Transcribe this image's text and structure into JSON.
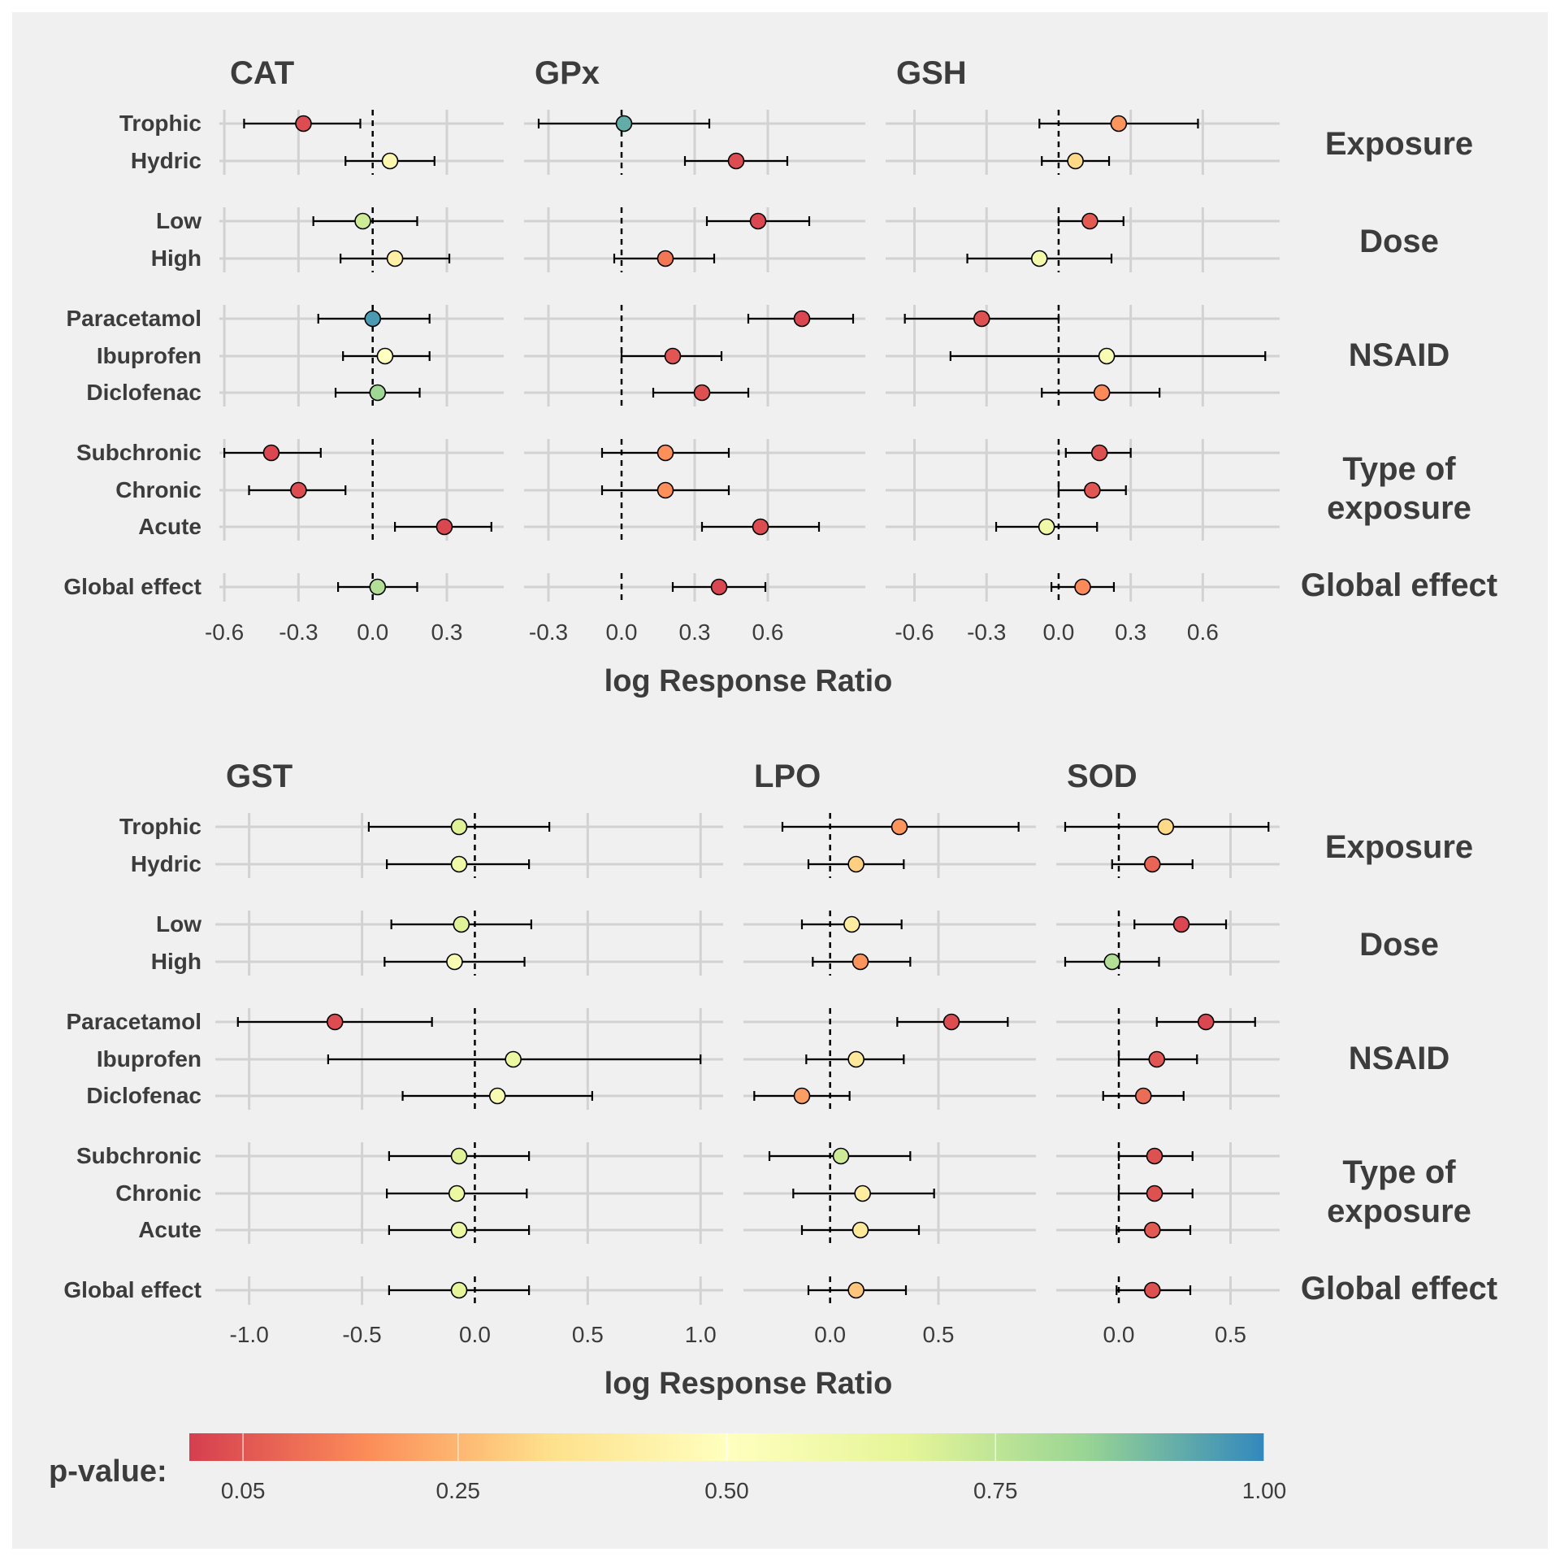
{
  "xlabel": "log Response Ratio",
  "colorbar": {
    "label": "p-value:",
    "ticks": [
      0.05,
      0.25,
      0.5,
      0.75,
      1.0
    ],
    "tick_labels": [
      "0.05",
      "0.25",
      "0.50",
      "0.75",
      "1.00"
    ],
    "range": [
      0.0,
      1.0
    ],
    "colors": [
      "#D53E4F",
      "#FC8D59",
      "#FEE08B",
      "#FFFFBF",
      "#E6F598",
      "#99D594",
      "#3288BD"
    ]
  },
  "group_labels": [
    "Exposure",
    "Dose",
    "NSAID",
    "Type of\nexposure",
    "Global effect"
  ],
  "rows": [
    {
      "label": "Trophic",
      "group": 0
    },
    {
      "label": "Hydric",
      "group": 0
    },
    {
      "label": "Low",
      "group": 1
    },
    {
      "label": "High",
      "group": 1
    },
    {
      "label": "Paracetamol",
      "group": 2
    },
    {
      "label": "Ibuprofen",
      "group": 2
    },
    {
      "label": "Diclofenac",
      "group": 2
    },
    {
      "label": "Subchronic",
      "group": 3
    },
    {
      "label": "Chronic",
      "group": 3
    },
    {
      "label": "Acute",
      "group": 3
    },
    {
      "label": "Global effect",
      "group": 4
    }
  ],
  "chart_data": [
    {
      "type": "scatter",
      "title": "CAT",
      "xlim": [
        -0.62,
        0.53
      ],
      "xticks": [
        -0.6,
        -0.3,
        0.0,
        0.3
      ],
      "xtick_labels": [
        "-0.6",
        "-0.3",
        "0.0",
        "0.3"
      ],
      "points": [
        {
          "category": "Trophic",
          "x": -0.28,
          "lo": -0.52,
          "hi": -0.05,
          "p": 0.03
        },
        {
          "category": "Hydric",
          "x": 0.07,
          "lo": -0.11,
          "hi": 0.25,
          "p": 0.45
        },
        {
          "category": "Low",
          "x": -0.04,
          "lo": -0.24,
          "hi": 0.18,
          "p": 0.72
        },
        {
          "category": "High",
          "x": 0.09,
          "lo": -0.13,
          "hi": 0.31,
          "p": 0.42
        },
        {
          "category": "Paracetamol",
          "x": 0.0,
          "lo": -0.22,
          "hi": 0.23,
          "p": 0.96
        },
        {
          "category": "Ibuprofen",
          "x": 0.05,
          "lo": -0.12,
          "hi": 0.23,
          "p": 0.5
        },
        {
          "category": "Diclofenac",
          "x": 0.02,
          "lo": -0.15,
          "hi": 0.19,
          "p": 0.82
        },
        {
          "category": "Subchronic",
          "x": -0.41,
          "lo": -0.6,
          "hi": -0.21,
          "p": 0.02
        },
        {
          "category": "Chronic",
          "x": -0.3,
          "lo": -0.5,
          "hi": -0.11,
          "p": 0.03
        },
        {
          "category": "Acute",
          "x": 0.29,
          "lo": 0.09,
          "hi": 0.48,
          "p": 0.02
        },
        {
          "category": "Global effect",
          "x": 0.02,
          "lo": -0.14,
          "hi": 0.18,
          "p": 0.78
        }
      ]
    },
    {
      "type": "scatter",
      "title": "GPx",
      "xlim": [
        -0.4,
        1.0
      ],
      "xticks": [
        -0.3,
        0.0,
        0.3,
        0.6
      ],
      "xtick_labels": [
        "-0.3",
        "0.0",
        "0.3",
        "0.6"
      ],
      "points": [
        {
          "category": "Trophic",
          "x": 0.01,
          "lo": -0.34,
          "hi": 0.36,
          "p": 0.92
        },
        {
          "category": "Hydric",
          "x": 0.47,
          "lo": 0.26,
          "hi": 0.68,
          "p": 0.03
        },
        {
          "category": "Low",
          "x": 0.56,
          "lo": 0.35,
          "hi": 0.77,
          "p": 0.02
        },
        {
          "category": "High",
          "x": 0.18,
          "lo": -0.03,
          "hi": 0.38,
          "p": 0.12
        },
        {
          "category": "Paracetamol",
          "x": 0.74,
          "lo": 0.52,
          "hi": 0.95,
          "p": 0.02
        },
        {
          "category": "Ibuprofen",
          "x": 0.21,
          "lo": 0.0,
          "hi": 0.41,
          "p": 0.05
        },
        {
          "category": "Diclofenac",
          "x": 0.33,
          "lo": 0.13,
          "hi": 0.52,
          "p": 0.04
        },
        {
          "category": "Subchronic",
          "x": 0.18,
          "lo": -0.08,
          "hi": 0.44,
          "p": 0.17
        },
        {
          "category": "Chronic",
          "x": 0.18,
          "lo": -0.08,
          "hi": 0.44,
          "p": 0.17
        },
        {
          "category": "Acute",
          "x": 0.57,
          "lo": 0.33,
          "hi": 0.81,
          "p": 0.03
        },
        {
          "category": "Global effect",
          "x": 0.4,
          "lo": 0.21,
          "hi": 0.59,
          "p": 0.02
        }
      ]
    },
    {
      "type": "scatter",
      "title": "GSH",
      "xlim": [
        -0.72,
        0.92
      ],
      "xticks": [
        -0.6,
        -0.3,
        0.0,
        0.3,
        0.6
      ],
      "xtick_labels": [
        "-0.6",
        "-0.3",
        "0.0",
        "0.3",
        "0.6"
      ],
      "points": [
        {
          "category": "Trophic",
          "x": 0.25,
          "lo": -0.08,
          "hi": 0.58,
          "p": 0.18
        },
        {
          "category": "Hydric",
          "x": 0.07,
          "lo": -0.07,
          "hi": 0.21,
          "p": 0.32
        },
        {
          "category": "Low",
          "x": 0.13,
          "lo": 0.0,
          "hi": 0.27,
          "p": 0.06
        },
        {
          "category": "High",
          "x": -0.08,
          "lo": -0.38,
          "hi": 0.22,
          "p": 0.58
        },
        {
          "category": "Paracetamol",
          "x": -0.32,
          "lo": -0.64,
          "hi": 0.0,
          "p": 0.04
        },
        {
          "category": "Ibuprofen",
          "x": 0.2,
          "lo": -0.45,
          "hi": 0.86,
          "p": 0.55
        },
        {
          "category": "Diclofenac",
          "x": 0.18,
          "lo": -0.07,
          "hi": 0.42,
          "p": 0.16
        },
        {
          "category": "Subchronic",
          "x": 0.17,
          "lo": 0.03,
          "hi": 0.3,
          "p": 0.04
        },
        {
          "category": "Chronic",
          "x": 0.14,
          "lo": 0.0,
          "hi": 0.28,
          "p": 0.05
        },
        {
          "category": "Acute",
          "x": -0.05,
          "lo": -0.26,
          "hi": 0.16,
          "p": 0.6
        },
        {
          "category": "Global effect",
          "x": 0.1,
          "lo": -0.03,
          "hi": 0.23,
          "p": 0.16
        }
      ]
    },
    {
      "type": "scatter",
      "title": "GST",
      "xlim": [
        -1.15,
        1.1
      ],
      "xticks": [
        -1.0,
        -0.5,
        0.0,
        0.5,
        1.0
      ],
      "xtick_labels": [
        "-1.0",
        "-0.5",
        "0.0",
        "0.5",
        "1.0"
      ],
      "points": [
        {
          "category": "Trophic",
          "x": -0.07,
          "lo": -0.47,
          "hi": 0.33,
          "p": 0.68
        },
        {
          "category": "Hydric",
          "x": -0.07,
          "lo": -0.39,
          "hi": 0.24,
          "p": 0.6
        },
        {
          "category": "Low",
          "x": -0.06,
          "lo": -0.37,
          "hi": 0.25,
          "p": 0.68
        },
        {
          "category": "High",
          "x": -0.09,
          "lo": -0.4,
          "hi": 0.22,
          "p": 0.55
        },
        {
          "category": "Paracetamol",
          "x": -0.62,
          "lo": -1.05,
          "hi": -0.19,
          "p": 0.03
        },
        {
          "category": "Ibuprofen",
          "x": 0.17,
          "lo": -0.65,
          "hi": 1.0,
          "p": 0.62
        },
        {
          "category": "Diclofenac",
          "x": 0.1,
          "lo": -0.32,
          "hi": 0.52,
          "p": 0.55
        },
        {
          "category": "Subchronic",
          "x": -0.07,
          "lo": -0.38,
          "hi": 0.24,
          "p": 0.68
        },
        {
          "category": "Chronic",
          "x": -0.08,
          "lo": -0.39,
          "hi": 0.23,
          "p": 0.62
        },
        {
          "category": "Acute",
          "x": -0.07,
          "lo": -0.38,
          "hi": 0.24,
          "p": 0.62
        },
        {
          "category": "Global effect",
          "x": -0.07,
          "lo": -0.38,
          "hi": 0.24,
          "p": 0.66
        }
      ]
    },
    {
      "type": "scatter",
      "title": "LPO",
      "xlim": [
        -0.4,
        0.95
      ],
      "xticks": [
        0.0,
        0.5
      ],
      "xtick_labels": [
        "0.0",
        "0.5"
      ],
      "points": [
        {
          "category": "Trophic",
          "x": 0.32,
          "lo": -0.22,
          "hi": 0.87,
          "p": 0.18
        },
        {
          "category": "Hydric",
          "x": 0.12,
          "lo": -0.1,
          "hi": 0.34,
          "p": 0.3
        },
        {
          "category": "Low",
          "x": 0.1,
          "lo": -0.13,
          "hi": 0.33,
          "p": 0.4
        },
        {
          "category": "High",
          "x": 0.14,
          "lo": -0.08,
          "hi": 0.37,
          "p": 0.18
        },
        {
          "category": "Paracetamol",
          "x": 0.56,
          "lo": 0.31,
          "hi": 0.82,
          "p": 0.03
        },
        {
          "category": "Ibuprofen",
          "x": 0.12,
          "lo": -0.11,
          "hi": 0.34,
          "p": 0.38
        },
        {
          "category": "Diclofenac",
          "x": -0.13,
          "lo": -0.35,
          "hi": 0.09,
          "p": 0.2
        },
        {
          "category": "Subchronic",
          "x": 0.05,
          "lo": -0.28,
          "hi": 0.37,
          "p": 0.72
        },
        {
          "category": "Chronic",
          "x": 0.15,
          "lo": -0.17,
          "hi": 0.48,
          "p": 0.4
        },
        {
          "category": "Acute",
          "x": 0.14,
          "lo": -0.13,
          "hi": 0.41,
          "p": 0.38
        },
        {
          "category": "Global effect",
          "x": 0.12,
          "lo": -0.1,
          "hi": 0.35,
          "p": 0.28
        }
      ]
    },
    {
      "type": "scatter",
      "title": "SOD",
      "xlim": [
        -0.28,
        0.72
      ],
      "xticks": [
        0.0,
        0.5
      ],
      "xtick_labels": [
        "0.0",
        "0.5"
      ],
      "points": [
        {
          "category": "Trophic",
          "x": 0.21,
          "lo": -0.24,
          "hi": 0.67,
          "p": 0.32
        },
        {
          "category": "Hydric",
          "x": 0.15,
          "lo": -0.03,
          "hi": 0.33,
          "p": 0.08
        },
        {
          "category": "Low",
          "x": 0.28,
          "lo": 0.07,
          "hi": 0.48,
          "p": 0.02
        },
        {
          "category": "High",
          "x": -0.03,
          "lo": -0.24,
          "hi": 0.18,
          "p": 0.78
        },
        {
          "category": "Paracetamol",
          "x": 0.39,
          "lo": 0.17,
          "hi": 0.61,
          "p": 0.02
        },
        {
          "category": "Ibuprofen",
          "x": 0.17,
          "lo": 0.0,
          "hi": 0.35,
          "p": 0.05
        },
        {
          "category": "Diclofenac",
          "x": 0.11,
          "lo": -0.07,
          "hi": 0.29,
          "p": 0.1
        },
        {
          "category": "Subchronic",
          "x": 0.16,
          "lo": 0.0,
          "hi": 0.33,
          "p": 0.04
        },
        {
          "category": "Chronic",
          "x": 0.16,
          "lo": 0.0,
          "hi": 0.33,
          "p": 0.04
        },
        {
          "category": "Acute",
          "x": 0.15,
          "lo": -0.01,
          "hi": 0.32,
          "p": 0.06
        },
        {
          "category": "Global effect",
          "x": 0.15,
          "lo": -0.01,
          "hi": 0.32,
          "p": 0.04
        }
      ]
    }
  ]
}
